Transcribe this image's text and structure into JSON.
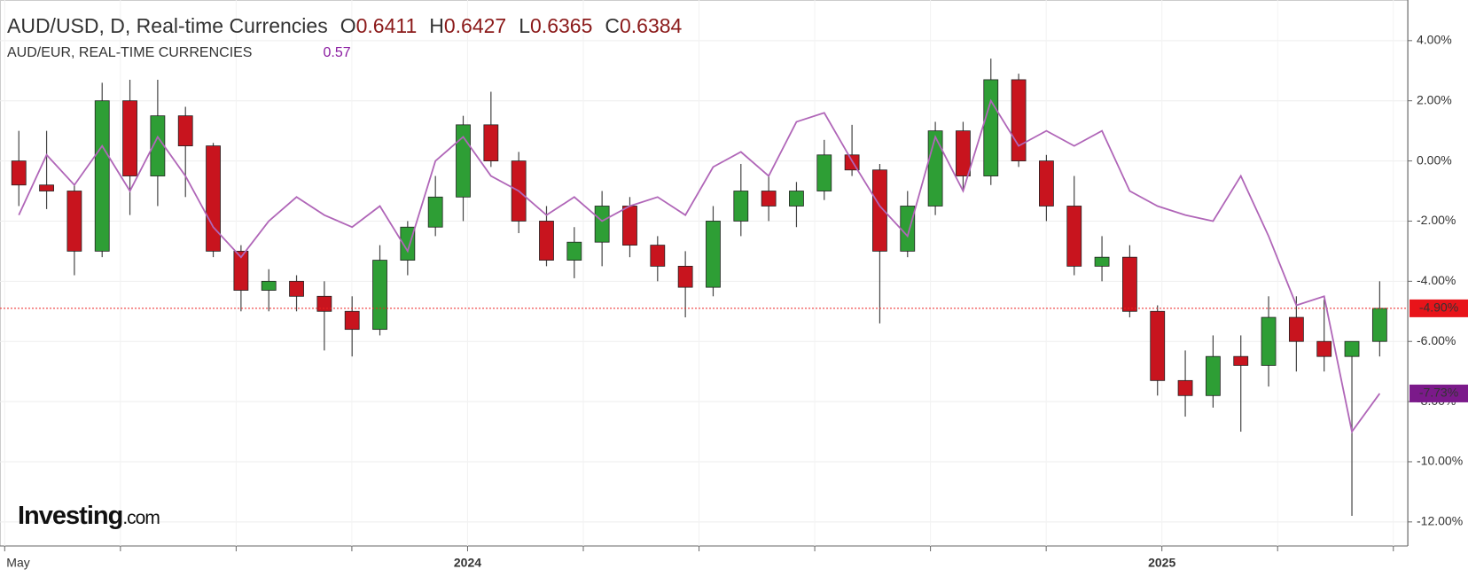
{
  "header": {
    "symbol": "AUD/USD, D, Real-time Currencies",
    "o_label": "O",
    "o_value": "0.6411",
    "h_label": "H",
    "h_value": "0.6427",
    "l_label": "L",
    "l_value": "0.6365",
    "c_label": "C",
    "c_value": "0.6384",
    "compare_symbol": "AUD/EUR, REAL-TIME CURRENCIES",
    "compare_value": "0.57"
  },
  "logo": {
    "main": "Investing",
    "suffix": ".com"
  },
  "chart_data": {
    "type": "candlestick",
    "xticks": [
      "May",
      null,
      null,
      null,
      "2024",
      null,
      null,
      null,
      null,
      null,
      "2025",
      null,
      null
    ],
    "ylim": [
      -12.8,
      5.35
    ],
    "yticks": [
      {
        "value": 4,
        "label": "4.00%"
      },
      {
        "value": 2,
        "label": "2.00%"
      },
      {
        "value": 0,
        "label": "0.00%"
      },
      {
        "value": -2,
        "label": "-2.00%"
      },
      {
        "value": -4,
        "label": "-4.00%"
      },
      {
        "value": -6,
        "label": "-6.00%"
      },
      {
        "value": -8,
        "label": "-8.00%"
      },
      {
        "value": -10,
        "label": "-10.00%"
      },
      {
        "value": -12,
        "label": "-12.00%"
      }
    ],
    "grid": true,
    "candles": {
      "name": "AUD/USD",
      "up_color": "#2e9e35",
      "down_color": "#c8141e",
      "open": [
        0,
        -0.8,
        -1,
        -3,
        2,
        -0.5,
        1.5,
        0.5,
        -3,
        -4.3,
        -4,
        -4.5,
        -5,
        -5.6,
        -3.3,
        -2.2,
        -1.2,
        1.2,
        0,
        -2,
        -3.3,
        -2.7,
        -1.5,
        -2.8,
        -3.5,
        -4.2,
        -2,
        -1,
        -1.5,
        -1,
        0.2,
        -0.3,
        -3,
        -1.5,
        1,
        -0.5,
        2.7,
        0,
        -1.5,
        -3.5,
        -3.2,
        -5,
        -7.3,
        -7.8,
        -6.5,
        -6.8,
        -5.2,
        -6,
        -6.5,
        -6
      ],
      "high": [
        1,
        1,
        -0.8,
        2.6,
        2.7,
        2.7,
        1.8,
        0.6,
        -2.8,
        -3.6,
        -3.8,
        -4,
        -4.5,
        -2.8,
        -2,
        -0.5,
        1.5,
        2.3,
        0.3,
        -1.5,
        -2.2,
        -1,
        -1.2,
        -2.5,
        -3,
        -1.5,
        -0.1,
        -0.5,
        -0.7,
        0.7,
        1.2,
        -0.1,
        -1,
        1.3,
        1.3,
        3.4,
        2.9,
        0.2,
        -0.5,
        -2.5,
        -2.8,
        -4.8,
        -6.3,
        -5.8,
        -5.8,
        -4.5,
        -4.5,
        -4.6,
        -6,
        -4
      ],
      "low": [
        -1.5,
        -1.6,
        -3.8,
        -3.2,
        -1.8,
        -1.5,
        -1.2,
        -3.2,
        -5,
        -5,
        -5,
        -6.3,
        -6.5,
        -5.8,
        -3.8,
        -2.5,
        -2,
        -0.2,
        -2.4,
        -3.5,
        -3.9,
        -3.5,
        -3.2,
        -4,
        -5.2,
        -4.5,
        -2.5,
        -2,
        -2.2,
        -1.3,
        -0.5,
        -5.4,
        -3.2,
        -1.8,
        -1,
        -0.8,
        -0.2,
        -2,
        -3.8,
        -4,
        -5.2,
        -7.8,
        -8.5,
        -8.2,
        -9,
        -7.5,
        -7,
        -7,
        -11.8,
        -6.5
      ],
      "close": [
        -0.8,
        -1,
        -3,
        2,
        -0.5,
        1.5,
        0.5,
        -3,
        -4.3,
        -4,
        -4.5,
        -5,
        -5.6,
        -3.3,
        -2.2,
        -1.2,
        1.2,
        0,
        -2,
        -3.3,
        -2.7,
        -1.5,
        -2.8,
        -3.5,
        -4.2,
        -2,
        -1,
        -1.5,
        -1,
        0.2,
        -0.3,
        -3,
        -1.5,
        1,
        -0.5,
        2.7,
        0,
        -1.5,
        -3.5,
        -3.2,
        -5,
        -7.3,
        -7.8,
        -6.5,
        -6.8,
        -5.2,
        -6,
        -6.5,
        -6,
        -4.9
      ],
      "last_label": "-4.90%"
    },
    "series": [
      {
        "name": "AUD/EUR",
        "color": "#b066b8",
        "values": [
          -1.8,
          0.2,
          -0.8,
          0.5,
          -1,
          0.8,
          -0.5,
          -2.2,
          -3.2,
          -2,
          -1.2,
          -1.8,
          -2.2,
          -1.5,
          -3,
          0,
          0.8,
          -0.5,
          -1,
          -1.8,
          -1.2,
          -2,
          -1.5,
          -1.2,
          -1.8,
          -0.2,
          0.3,
          -0.5,
          1.3,
          1.6,
          0,
          -1.5,
          -2.5,
          0.8,
          -1,
          2,
          0.5,
          1,
          0.5,
          1,
          -1,
          -1.5,
          -1.8,
          -2,
          -0.5,
          -2.5,
          -4.8,
          -4.5,
          -9,
          -7.73
        ],
        "last_label": "-7.73%",
        "last_color": "#7b1a8a"
      }
    ]
  }
}
